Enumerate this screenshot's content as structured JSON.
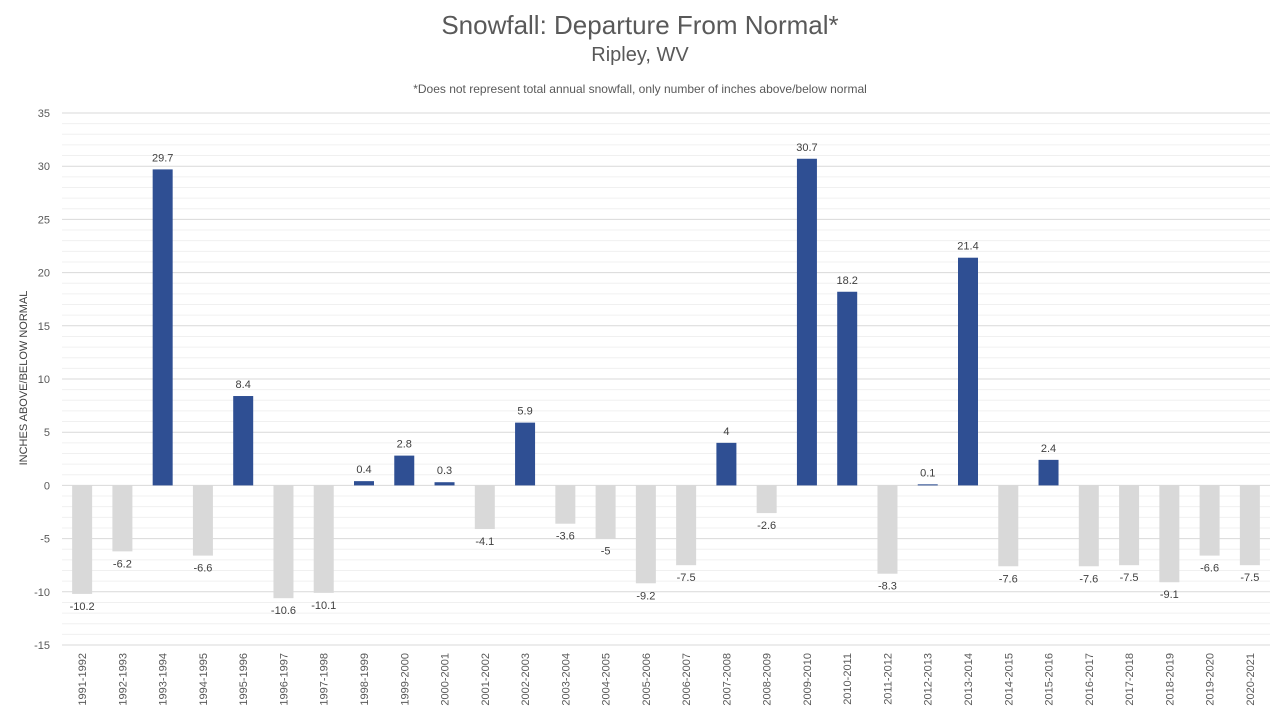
{
  "chart_data": {
    "type": "bar",
    "title": "Snowfall: Departure From Normal*",
    "subtitle": "Ripley, WV",
    "note": "*Does not represent  total annual snowfall, only number of inches above/below normal",
    "ylabel": "INCHES ABOVE/BELOW NORMAL",
    "xlabel": "",
    "ylim": [
      -15,
      35
    ],
    "yticks": [
      -15,
      -10,
      -5,
      0,
      5,
      10,
      15,
      20,
      25,
      30,
      35
    ],
    "grid": true,
    "legend": "none",
    "colors": {
      "positive": "#2f4f93",
      "negative": "#d9d9d9",
      "grid": "#d9d9d9"
    },
    "categories": [
      "1991-1992",
      "1992-1993",
      "1993-1994",
      "1994-1995",
      "1995-1996",
      "1996-1997",
      "1997-1998",
      "1998-1999",
      "1999-2000",
      "2000-2001",
      "2001-2002",
      "2002-2003",
      "2003-2004",
      "2004-2005",
      "2005-2006",
      "2006-2007",
      "2007-2008",
      "2008-2009",
      "2009-2010",
      "2010-2011",
      "2011-2012",
      "2012-2013",
      "2013-2014",
      "2014-2015",
      "2015-2016",
      "2016-2017",
      "2017-2018",
      "2018-2019",
      "2019-2020",
      "2020-2021"
    ],
    "values": [
      -10.2,
      -6.2,
      29.7,
      -6.6,
      8.4,
      -10.6,
      -10.1,
      0.4,
      2.8,
      0.3,
      -4.1,
      5.9,
      -3.6,
      -5,
      -9.2,
      -7.5,
      4,
      -2.6,
      30.7,
      18.2,
      -8.3,
      0.1,
      21.4,
      -7.6,
      2.4,
      -7.6,
      -7.5,
      -9.1,
      -6.6,
      -7.5
    ]
  }
}
